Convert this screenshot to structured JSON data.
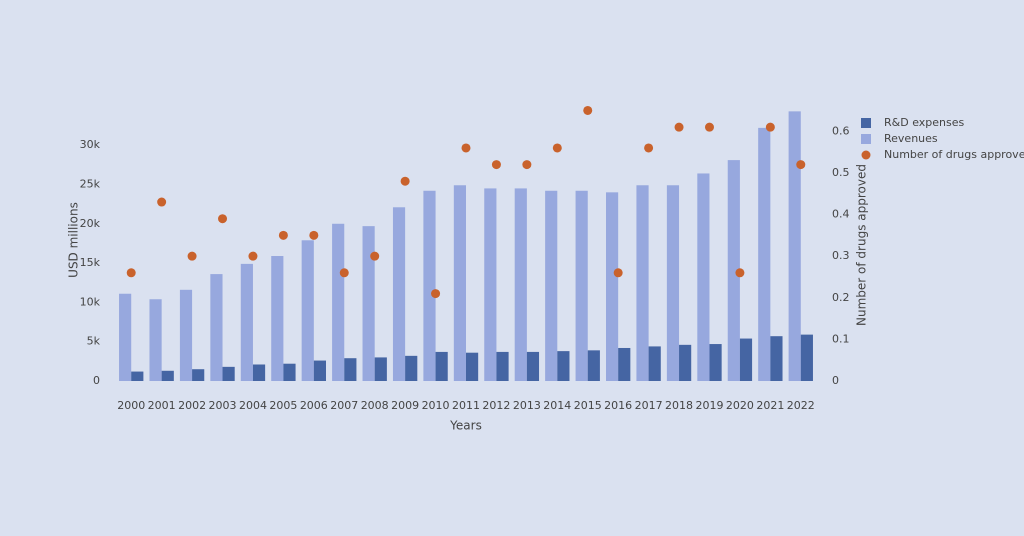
{
  "chart_data": {
    "type": "bar_scatter_dual",
    "x_label": "Years",
    "y_label": "USD millions",
    "y2_label": "Number of drugs approved",
    "categories": [
      "2000",
      "2001",
      "2002",
      "2003",
      "2004",
      "2005",
      "2006",
      "2007",
      "2008",
      "2009",
      "2010",
      "2011",
      "2012",
      "2013",
      "2014",
      "2015",
      "2016",
      "2017",
      "2018",
      "2019",
      "2020",
      "2021",
      "2022"
    ],
    "series": [
      {
        "name": "R&D expenses",
        "type": "bar",
        "color": "#4565a3",
        "values": [
          1200,
          1300,
          1500,
          1800,
          2100,
          2200,
          2600,
          2900,
          3000,
          3200,
          3700,
          3600,
          3700,
          3700,
          3800,
          3900,
          4200,
          4400,
          4600,
          4700,
          5400,
          5700,
          5900
        ]
      },
      {
        "name": "Revenues",
        "type": "bar",
        "color": "#97a8de",
        "values": [
          11100,
          10400,
          11600,
          13600,
          14900,
          15900,
          17900,
          20000,
          19700,
          22100,
          24200,
          24900,
          24500,
          24500,
          24200,
          24200,
          24000,
          24900,
          24900,
          26400,
          28100,
          32200,
          34300
        ]
      },
      {
        "name": "Number of drugs approved",
        "type": "scatter",
        "axis": "y2",
        "color": "#c9622c",
        "values": [
          0.26,
          0.43,
          0.3,
          0.39,
          0.3,
          0.35,
          0.35,
          0.26,
          0.3,
          0.48,
          0.21,
          0.56,
          0.52,
          0.52,
          0.56,
          0.65,
          0.26,
          0.56,
          0.61,
          0.61,
          0.26,
          0.61,
          0.52
        ]
      }
    ],
    "ylim": [
      0,
      36000
    ],
    "yticks": [
      0,
      {
        "value": 5000,
        "label": "5k"
      },
      {
        "value": 10000,
        "label": "10k"
      },
      {
        "value": 15000,
        "label": "15k"
      },
      {
        "value": 20000,
        "label": "20k"
      },
      {
        "value": 25000,
        "label": "25k"
      },
      {
        "value": 30000,
        "label": "30k"
      }
    ],
    "y2lim": [
      0,
      0.68
    ],
    "y2ticks": [
      0,
      0.1,
      0.2,
      0.3,
      0.4,
      0.5,
      0.6
    ],
    "legend": "top-right"
  }
}
